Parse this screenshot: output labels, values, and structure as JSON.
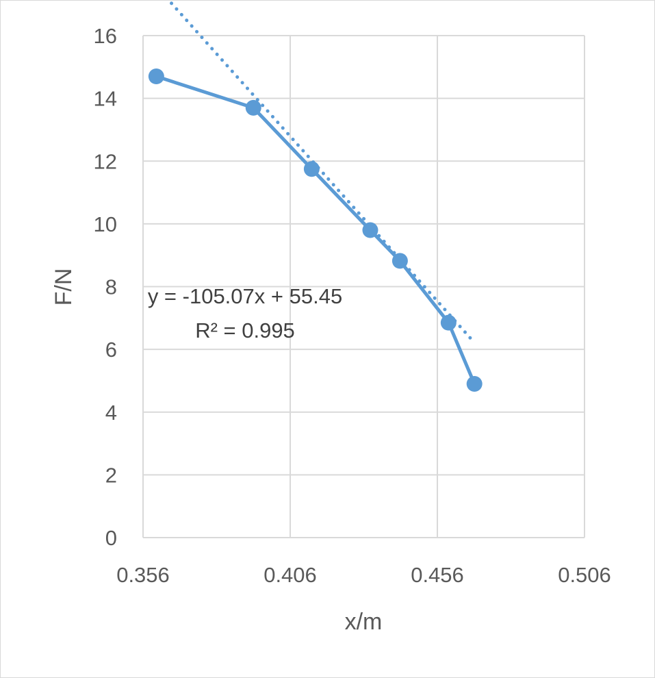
{
  "chart_data": {
    "type": "scatter",
    "title": "",
    "xlabel": "x/m",
    "ylabel": "F/N",
    "xlim": [
      0.356,
      0.506
    ],
    "ylim": [
      0,
      16
    ],
    "xticks": [
      0.356,
      0.406,
      0.456,
      0.506
    ],
    "xtick_labels": [
      "0.356",
      "0.406",
      "0.456",
      "0.506"
    ],
    "yticks": [
      0,
      2,
      4,
      6,
      8,
      10,
      12,
      14,
      16
    ],
    "ytick_labels": [
      "0",
      "2",
      "4",
      "6",
      "8",
      "10",
      "12",
      "14",
      "16"
    ],
    "grid": true,
    "legend": "none",
    "series": [
      {
        "x": [
          0.3605,
          0.3935,
          0.4133,
          0.4332,
          0.4433,
          0.4598,
          0.4686
        ],
        "y": [
          14.7,
          13.7,
          11.75,
          9.8,
          8.82,
          6.85,
          4.9
        ],
        "color": "#5b9bd5",
        "connected": true
      }
    ],
    "trendline": {
      "type": "linear",
      "slope": -105.07,
      "intercept": 55.45,
      "x_range": [
        0.3605,
        0.4686
      ],
      "color": "#5b9bd5",
      "style": "dotted",
      "equation_label": "y = -105.07x + 55.45",
      "r2_label": "R² = 0.995"
    }
  }
}
